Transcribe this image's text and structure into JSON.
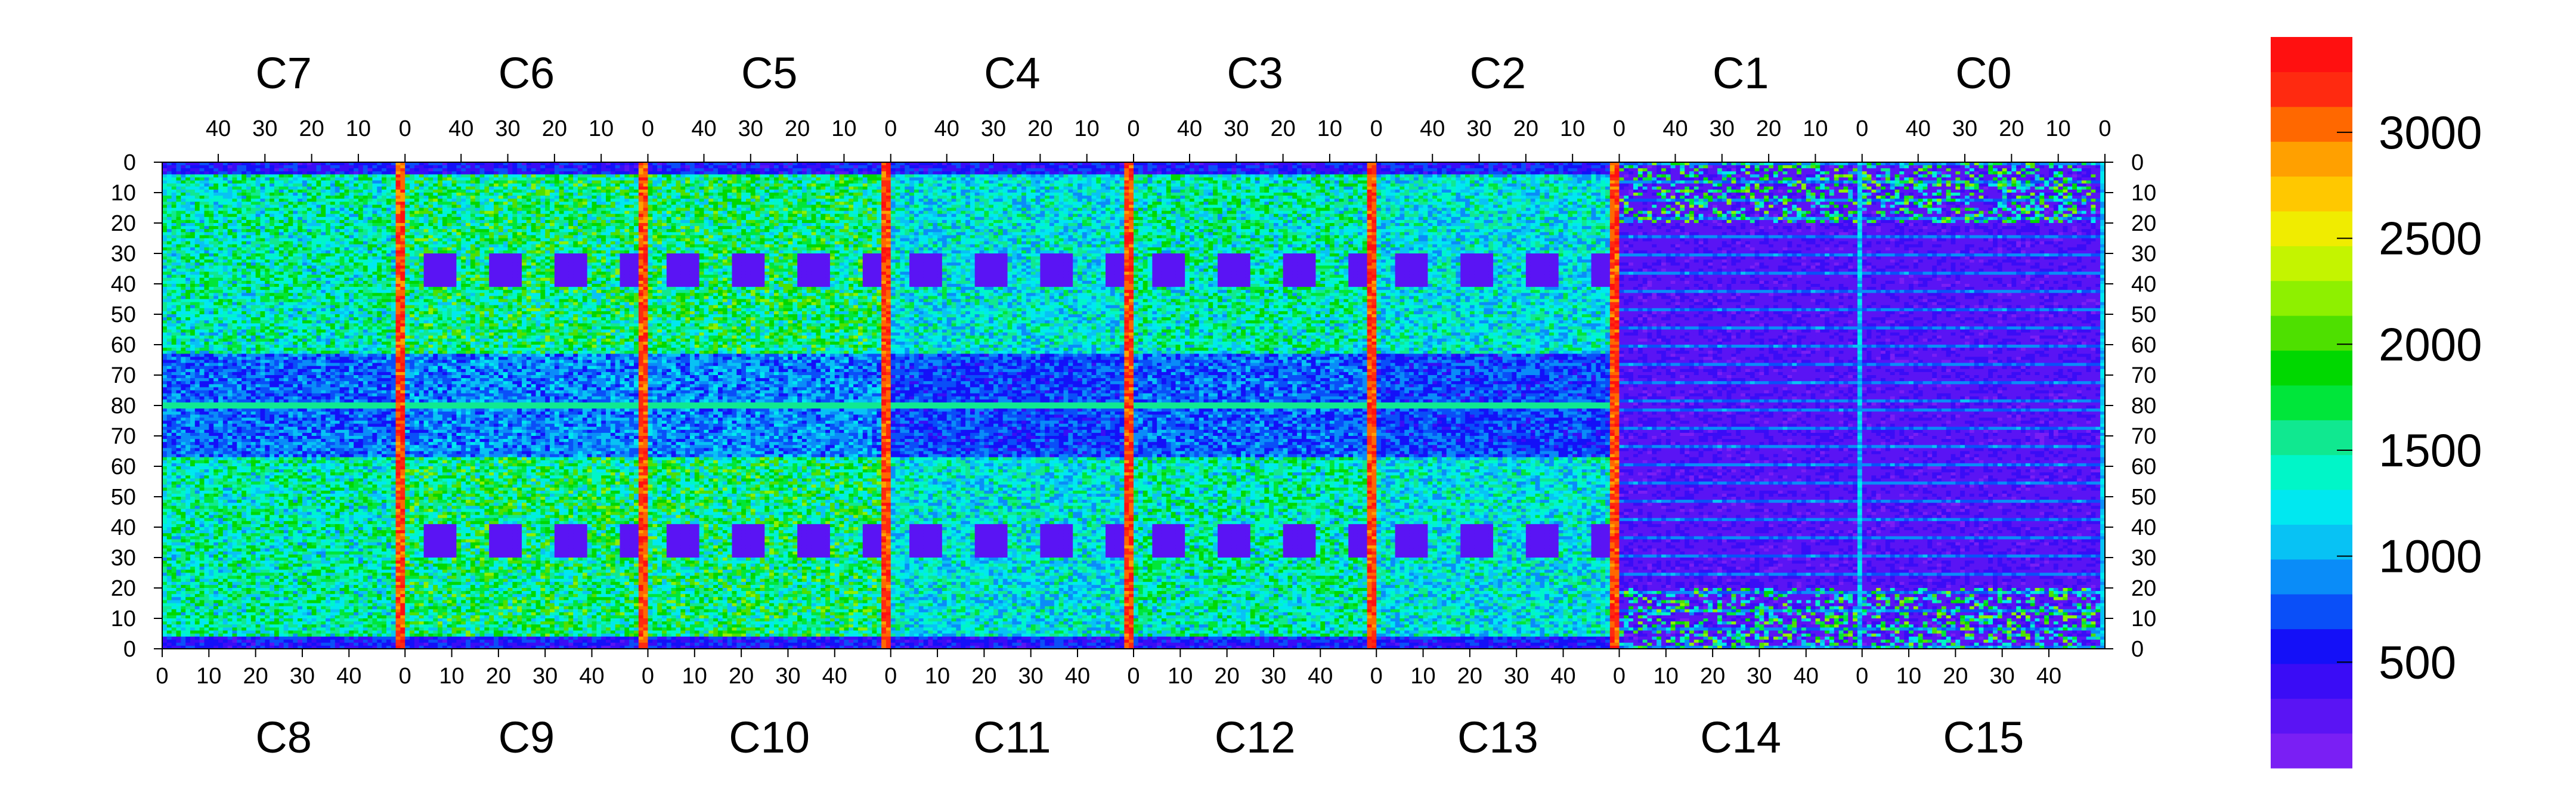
{
  "chart_data": {
    "type": "heatmap",
    "title": "",
    "xlabel": "",
    "ylabel": "",
    "grid": false,
    "top_chip_labels": [
      "C7",
      "C6",
      "C5",
      "C4",
      "C3",
      "C2",
      "C1",
      "C0"
    ],
    "bottom_chip_labels": [
      "C8",
      "C9",
      "C10",
      "C11",
      "C12",
      "C13",
      "C14",
      "C15"
    ],
    "top_column_tick_labels": [
      "40",
      "30",
      "20",
      "10",
      "0"
    ],
    "bottom_column_tick_labels": [
      "0",
      "10",
      "20",
      "30",
      "40"
    ],
    "left_row_tick_labels": [
      "0",
      "10",
      "20",
      "30",
      "40",
      "50",
      "60",
      "70",
      "80",
      "70",
      "60",
      "50",
      "40",
      "30",
      "20",
      "10",
      "0"
    ],
    "right_row_tick_labels": [
      "0",
      "10",
      "20",
      "30",
      "40",
      "50",
      "60",
      "70",
      "80",
      "70",
      "60",
      "50",
      "40",
      "30",
      "20",
      "10",
      "0"
    ],
    "columns_per_chip": 52,
    "rows_per_half": 80,
    "colorbar": {
      "range": [
        0,
        3450
      ],
      "tick_values": [
        500,
        1000,
        1500,
        2000,
        2500,
        3000
      ],
      "tick_labels": [
        "500",
        "1000",
        "1500",
        "2000",
        "2500",
        "3000"
      ],
      "colors": [
        "#7a1ff4",
        "#5a14f4",
        "#3a0cf6",
        "#1410f8",
        "#0a4ff8",
        "#0a8cf8",
        "#08c2f4",
        "#00e8f0",
        "#00f6c8",
        "#10e890",
        "#00e63a",
        "#00d800",
        "#4ee000",
        "#8ef000",
        "#c4f400",
        "#f0ec00",
        "#ffc800",
        "#ffa000",
        "#ff6800",
        "#ff2a10",
        "#ff1010"
      ]
    },
    "zones": [
      {
        "chip": "C7",
        "half": "top",
        "pattern": "mixed-green",
        "value": 1700
      },
      {
        "chip": "C6",
        "half": "top",
        "pattern": "mixed-green",
        "value": 1900
      },
      {
        "chip": "C5",
        "half": "top",
        "pattern": "mixed-green",
        "value": 1900
      },
      {
        "chip": "C4",
        "half": "top",
        "pattern": "mixed-green",
        "value": 1500
      },
      {
        "chip": "C3",
        "half": "top",
        "pattern": "mixed-green",
        "value": 1700
      },
      {
        "chip": "C2",
        "half": "top",
        "pattern": "mixed-green",
        "value": 1500
      },
      {
        "chip": "C1",
        "half": "top",
        "pattern": "low-stripes",
        "value": 300
      },
      {
        "chip": "C0",
        "half": "top",
        "pattern": "low-stripes",
        "value": 300
      },
      {
        "chip": "C8",
        "half": "bottom",
        "pattern": "mixed-green",
        "value": 1700
      },
      {
        "chip": "C9",
        "half": "bottom",
        "pattern": "mixed-green",
        "value": 1900
      },
      {
        "chip": "C10",
        "half": "bottom",
        "pattern": "mixed-green",
        "value": 1900
      },
      {
        "chip": "C11",
        "half": "bottom",
        "pattern": "mixed-green",
        "value": 1500
      },
      {
        "chip": "C12",
        "half": "bottom",
        "pattern": "mixed-green",
        "value": 1700
      },
      {
        "chip": "C13",
        "half": "bottom",
        "pattern": "mixed-green",
        "value": 1500
      },
      {
        "chip": "C14",
        "half": "bottom",
        "pattern": "low-stripes",
        "value": 300
      },
      {
        "chip": "C15",
        "half": "bottom",
        "pattern": "low-stripes",
        "value": 300
      }
    ],
    "hot_columns_note": "chip boundary columns near 0 show values above 3000"
  }
}
